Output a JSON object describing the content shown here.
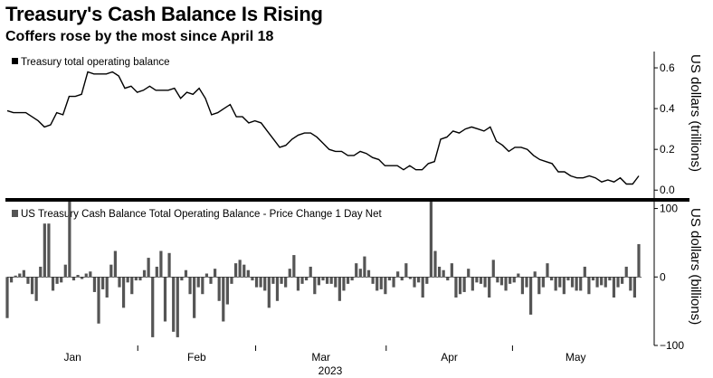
{
  "title": "Treasury's Cash Balance Is Rising",
  "subtitle": "Coffers rose by the most since April 18",
  "chart_data": [
    {
      "type": "line",
      "legend": "Treasury total operating balance",
      "ylabel": "US dollars (trillions)",
      "ylim": [
        -0.03,
        0.68
      ],
      "yticks": [
        "0.0",
        "0.2",
        "0.4",
        "0.6"
      ],
      "ytick_values": [
        0.0,
        0.2,
        0.4,
        0.6
      ],
      "series": [
        {
          "values": [
            0.39,
            0.38,
            0.38,
            0.38,
            0.36,
            0.34,
            0.31,
            0.32,
            0.38,
            0.37,
            0.46,
            0.46,
            0.47,
            0.58,
            0.57,
            0.57,
            0.57,
            0.58,
            0.56,
            0.5,
            0.51,
            0.48,
            0.49,
            0.51,
            0.49,
            0.49,
            0.49,
            0.5,
            0.45,
            0.48,
            0.47,
            0.5,
            0.45,
            0.37,
            0.38,
            0.4,
            0.42,
            0.36,
            0.36,
            0.33,
            0.34,
            0.33,
            0.29,
            0.25,
            0.21,
            0.22,
            0.25,
            0.27,
            0.28,
            0.28,
            0.26,
            0.23,
            0.2,
            0.19,
            0.19,
            0.17,
            0.17,
            0.19,
            0.18,
            0.16,
            0.15,
            0.12,
            0.12,
            0.12,
            0.1,
            0.12,
            0.1,
            0.1,
            0.13,
            0.14,
            0.25,
            0.26,
            0.29,
            0.28,
            0.3,
            0.31,
            0.3,
            0.29,
            0.31,
            0.24,
            0.22,
            0.19,
            0.21,
            0.21,
            0.2,
            0.17,
            0.15,
            0.14,
            0.13,
            0.09,
            0.09,
            0.07,
            0.06,
            0.06,
            0.07,
            0.06,
            0.04,
            0.05,
            0.04,
            0.06,
            0.03,
            0.03,
            0.07
          ]
        }
      ]
    },
    {
      "type": "bar",
      "legend": "US Treasury Cash Balance Total Operating Balance - Price Change 1 Day Net",
      "ylabel": "US dollars (billions)",
      "ylim": [
        -100,
        110
      ],
      "yticks": [
        "100",
        "0",
        "−100"
      ],
      "ytick_values": [
        100,
        0,
        -100
      ],
      "series": [
        {
          "values": [
            -60,
            -8,
            2,
            5,
            10,
            -10,
            -25,
            -35,
            15,
            78,
            78,
            -20,
            -10,
            -8,
            18,
            110,
            -5,
            3,
            -3,
            5,
            8,
            -22,
            -68,
            -18,
            -30,
            18,
            38,
            -15,
            -45,
            -8,
            -25,
            -5,
            -5,
            10,
            28,
            -88,
            15,
            38,
            -65,
            35,
            -80,
            -88,
            -5,
            10,
            -25,
            -60,
            -15,
            -25,
            5,
            -10,
            12,
            -35,
            -65,
            -40,
            -10,
            20,
            25,
            18,
            10,
            -5,
            -15,
            -15,
            -20,
            -45,
            -10,
            -35,
            -10,
            -15,
            12,
            32,
            -20,
            -10,
            -5,
            15,
            -25,
            -12,
            -5,
            -10,
            -10,
            -15,
            -35,
            -20,
            -10,
            -5,
            20,
            12,
            30,
            10,
            -10,
            -20,
            -18,
            -25,
            -5,
            -15,
            8,
            -5,
            20,
            -3,
            -15,
            -8,
            -30,
            -10,
            110,
            38,
            15,
            10,
            -5,
            20,
            -30,
            -25,
            -22,
            12,
            -20,
            -8,
            -10,
            -15,
            -30,
            25,
            -8,
            -12,
            -20,
            -10,
            -8,
            5,
            -25,
            -15,
            -55,
            8,
            -25,
            -15,
            20,
            -5,
            -20,
            -15,
            -25,
            -5,
            -15,
            -20,
            -20,
            15,
            -25,
            -5,
            -15,
            -12,
            -15,
            -5,
            -30,
            -15,
            -10,
            15,
            -20,
            -30,
            48
          ]
        }
      ],
      "xticks": [
        "Jan",
        "Feb",
        "Mar",
        "Apr",
        "May"
      ],
      "xtick_positions": [
        0,
        31,
        59,
        90,
        120
      ],
      "xlabel": "2023"
    }
  ]
}
